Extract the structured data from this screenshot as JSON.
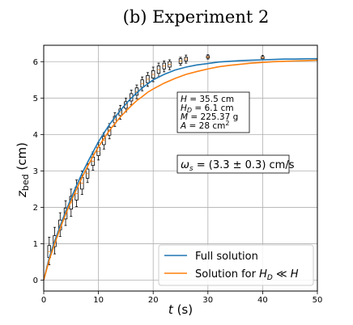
{
  "chart_data": {
    "type": "line",
    "title": "(b) Experiment 2",
    "xlabel": "t (s)",
    "ylabel": "z_bed (cm)",
    "xlim": [
      0,
      50
    ],
    "ylim": [
      -0.3,
      6.45
    ],
    "xticks": [
      0,
      10,
      20,
      30,
      40,
      50
    ],
    "yticks": [
      0,
      1,
      2,
      3,
      4,
      5,
      6
    ],
    "grid": true,
    "legend_position": "bottom-right",
    "series": [
      {
        "name": "Full solution",
        "color": "#1f77b4",
        "x": [
          0,
          1,
          2,
          3,
          4,
          5,
          6,
          7,
          8,
          9,
          10,
          11,
          12,
          13,
          14,
          15,
          16,
          17,
          18,
          19,
          20,
          22,
          24,
          26,
          28,
          30,
          32,
          34,
          36,
          38,
          40,
          42,
          44,
          46,
          48,
          50
        ],
        "y": [
          0,
          0.61,
          1.07,
          1.49,
          1.88,
          2.25,
          2.6,
          2.93,
          3.23,
          3.52,
          3.8,
          4.04,
          4.27,
          4.47,
          4.66,
          4.84,
          5.0,
          5.14,
          5.28,
          5.39,
          5.5,
          5.65,
          5.77,
          5.85,
          5.91,
          5.95,
          5.99,
          6.01,
          6.03,
          6.04,
          6.05,
          6.06,
          6.07,
          6.07,
          6.08,
          6.08
        ]
      },
      {
        "name": "Solution for H_D ≪ H",
        "color": "#ff7f0e",
        "x": [
          0,
          1,
          2,
          3,
          4,
          5,
          6,
          7,
          8,
          9,
          10,
          11,
          12,
          13,
          14,
          15,
          16,
          17,
          18,
          19,
          20,
          22,
          24,
          26,
          28,
          30,
          32,
          34,
          36,
          38,
          40,
          42,
          44,
          46,
          48,
          50
        ],
        "y": [
          0,
          0.55,
          1.0,
          1.42,
          1.81,
          2.17,
          2.5,
          2.82,
          3.12,
          3.4,
          3.66,
          3.89,
          4.11,
          4.3,
          4.48,
          4.64,
          4.79,
          4.93,
          5.04,
          5.16,
          5.25,
          5.41,
          5.54,
          5.65,
          5.73,
          5.8,
          5.86,
          5.9,
          5.93,
          5.96,
          5.98,
          6.0,
          6.01,
          6.02,
          6.03,
          6.04
        ]
      }
    ],
    "boxes": [
      {
        "x": 1,
        "q1": 0.62,
        "q3": 0.95,
        "min": 0.42,
        "max": 1.18
      },
      {
        "x": 2,
        "q1": 0.92,
        "q3": 1.22,
        "min": 0.72,
        "max": 1.45
      },
      {
        "x": 3,
        "q1": 1.38,
        "q3": 1.65,
        "min": 1.2,
        "max": 1.85
      },
      {
        "x": 4,
        "q1": 1.68,
        "q3": 1.98,
        "min": 1.5,
        "max": 2.18
      },
      {
        "x": 5,
        "q1": 1.95,
        "q3": 2.3,
        "min": 1.75,
        "max": 2.5
      },
      {
        "x": 6,
        "q1": 2.2,
        "q3": 2.55,
        "min": 2.02,
        "max": 2.75
      },
      {
        "x": 7,
        "q1": 2.5,
        "q3": 2.82,
        "min": 2.35,
        "max": 3.0
      },
      {
        "x": 8,
        "q1": 2.8,
        "q3": 3.05,
        "min": 2.68,
        "max": 3.2
      },
      {
        "x": 9,
        "q1": 3.15,
        "q3": 3.38,
        "min": 3.02,
        "max": 3.52
      },
      {
        "x": 10,
        "q1": 3.42,
        "q3": 3.65,
        "min": 3.3,
        "max": 3.78
      },
      {
        "x": 11,
        "q1": 3.72,
        "q3": 3.95,
        "min": 3.6,
        "max": 4.05
      },
      {
        "x": 12,
        "q1": 3.98,
        "q3": 4.2,
        "min": 3.88,
        "max": 4.3
      },
      {
        "x": 13,
        "q1": 4.32,
        "q3": 4.5,
        "min": 4.22,
        "max": 4.6
      },
      {
        "x": 14,
        "q1": 4.52,
        "q3": 4.7,
        "min": 4.42,
        "max": 4.8
      },
      {
        "x": 15,
        "q1": 4.72,
        "q3": 4.9,
        "min": 4.62,
        "max": 5.0
      },
      {
        "x": 16,
        "q1": 4.92,
        "q3": 5.12,
        "min": 4.82,
        "max": 5.22
      },
      {
        "x": 17,
        "q1": 5.08,
        "q3": 5.28,
        "min": 4.98,
        "max": 5.36
      },
      {
        "x": 18,
        "q1": 5.3,
        "q3": 5.5,
        "min": 5.2,
        "max": 5.58
      },
      {
        "x": 19,
        "q1": 5.42,
        "q3": 5.62,
        "min": 5.32,
        "max": 5.7
      },
      {
        "x": 20,
        "q1": 5.55,
        "q3": 5.75,
        "min": 5.45,
        "max": 5.85
      },
      {
        "x": 21,
        "q1": 5.68,
        "q3": 5.88,
        "min": 5.58,
        "max": 5.96
      },
      {
        "x": 22,
        "q1": 5.8,
        "q3": 5.96,
        "min": 5.72,
        "max": 6.02
      },
      {
        "x": 23,
        "q1": 5.85,
        "q3": 6.0,
        "min": 5.78,
        "max": 6.05
      },
      {
        "x": 25,
        "q1": 5.95,
        "q3": 6.08,
        "min": 5.9,
        "max": 6.12
      },
      {
        "x": 26,
        "q1": 6.02,
        "q3": 6.12,
        "min": 5.96,
        "max": 6.18
      },
      {
        "x": 30,
        "q1": 6.1,
        "q3": 6.16,
        "min": 6.07,
        "max": 6.19
      },
      {
        "x": 40,
        "q1": 6.08,
        "q3": 6.14,
        "min": 6.05,
        "max": 6.17
      }
    ],
    "annotations": {
      "params": [
        "H = 35.5 cm",
        "H_D = 6.1 cm",
        "M = 225.37 g",
        "A = 28 cm²"
      ],
      "velocity": "ω_s = (3.3 ± 0.3) cm/s"
    }
  }
}
